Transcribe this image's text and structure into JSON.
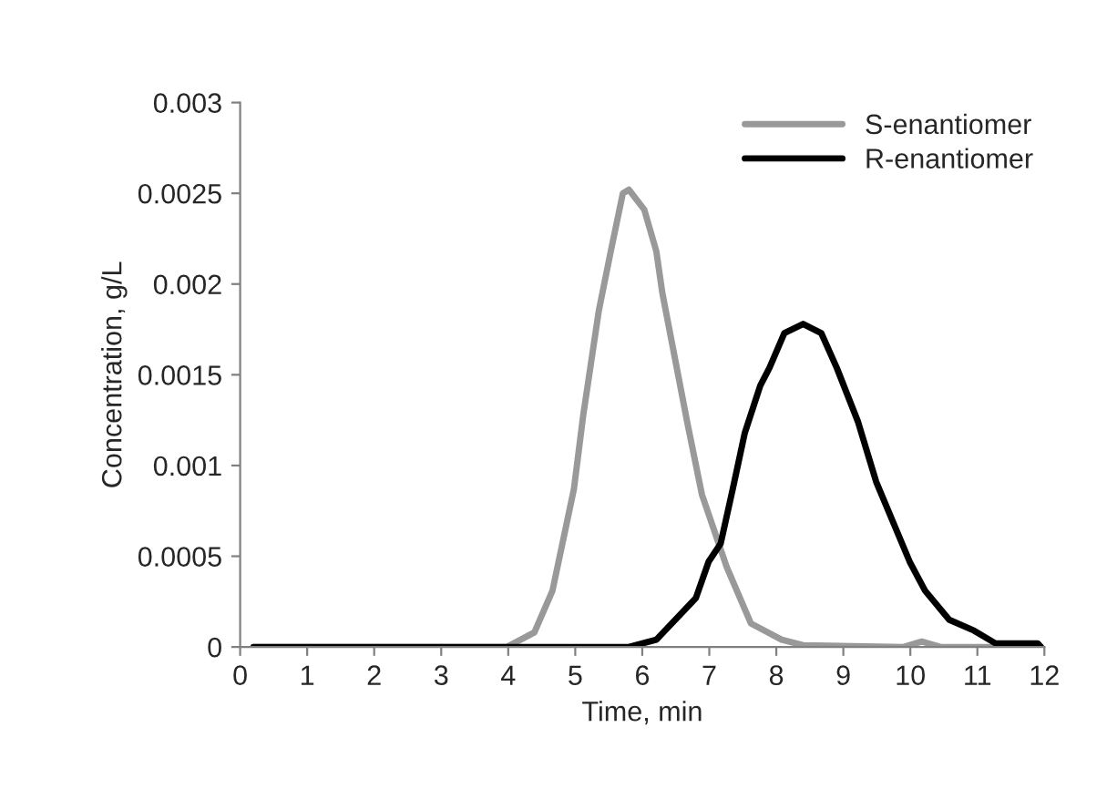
{
  "chart_data": {
    "type": "line",
    "xlabel": "Time, min",
    "ylabel": "Concentration, g/L",
    "xlim": [
      0,
      12
    ],
    "xticks": [
      0,
      1,
      2,
      3,
      4,
      5,
      6,
      7,
      8,
      9,
      10,
      11,
      12
    ],
    "ylim": [
      0,
      0.003
    ],
    "yticks": [
      0,
      0.0005,
      0.001,
      0.0015,
      0.002,
      0.0025,
      0.003
    ],
    "grid": false,
    "legend": "top right",
    "marker": "none",
    "line_style": "solid",
    "series": [
      {
        "name": "S-enantiomer",
        "color": "#999999",
        "x": [
          0.2,
          3.98,
          4.39,
          4.66,
          4.98,
          5.12,
          5.35,
          5.53,
          5.71,
          5.8,
          6.03,
          6.21,
          6.3,
          6.67,
          6.89,
          7.26,
          7.62,
          8.08,
          8.4,
          9.9,
          10.17,
          10.45,
          11.8
        ],
        "values": [
          0,
          0,
          8e-05,
          0.00031,
          0.00087,
          0.00128,
          0.00185,
          0.00218,
          0.0025,
          0.00252,
          0.00241,
          0.00218,
          0.00195,
          0.00124,
          0.00084,
          0.00044,
          0.00013,
          4e-05,
          1e-05,
          0,
          3e-05,
          0,
          0
        ]
      },
      {
        "name": "R-enantiomer",
        "color": "#000000",
        "x": [
          0.2,
          5.8,
          6.21,
          6.8,
          6.99,
          7.17,
          7.35,
          7.53,
          7.76,
          7.9,
          8.12,
          8.4,
          8.67,
          8.9,
          9.22,
          9.49,
          9.99,
          10.22,
          10.58,
          10.95,
          11.27,
          11.9,
          11.95
        ],
        "values": [
          0,
          0,
          4e-05,
          0.00027,
          0.00047,
          0.00057,
          0.00087,
          0.00118,
          0.00144,
          0.00154,
          0.00173,
          0.00178,
          0.00173,
          0.00154,
          0.00124,
          0.00091,
          0.00047,
          0.00031,
          0.00015,
          9e-05,
          2e-05,
          2e-05,
          0
        ]
      }
    ]
  }
}
